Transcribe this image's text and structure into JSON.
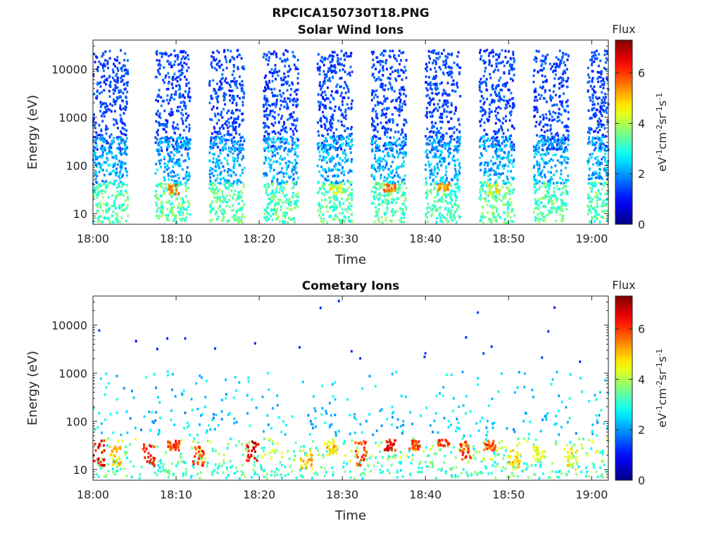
{
  "figure_title": "RPCICA150730T18.PNG",
  "chart_data": [
    {
      "type": "heatmap",
      "title": "Solar Wind Ions",
      "xlabel": "Time",
      "ylabel": "Energy (eV)",
      "x_ticks": [
        "18:00",
        "18:10",
        "18:20",
        "18:30",
        "18:40",
        "18:50",
        "19:00"
      ],
      "x_tick_minutes": [
        0,
        10,
        20,
        30,
        40,
        50,
        60
      ],
      "xlim_minutes": [
        0,
        62
      ],
      "y_scale": "log",
      "ylim": [
        6,
        40000
      ],
      "y_ticks": [
        "10",
        "100",
        "1000",
        "10000"
      ],
      "y_tick_values": [
        10,
        100,
        1000,
        10000
      ],
      "colorbar": {
        "label": "Flux",
        "unit": "eV-1cm-2sr-1s-1",
        "range": [
          0,
          7.3
        ],
        "ticks": [
          "0",
          "2",
          "4",
          "6"
        ],
        "tick_values": [
          0,
          2,
          4,
          6
        ],
        "colormap": "jet"
      },
      "sweep_bursts_start_minutes": [
        0,
        7.5,
        14,
        20.5,
        27,
        33.5,
        40,
        46.5,
        53,
        59.5
      ],
      "peak_bands": [
        {
          "start_minutes": 9,
          "energy_eV": [
            25,
            40
          ],
          "flux": 6.0
        },
        {
          "start_minutes": 28.5,
          "energy_eV": [
            25,
            40
          ],
          "flux": 5.0
        },
        {
          "start_minutes": 35,
          "energy_eV": [
            28,
            40
          ],
          "flux": 6.0
        },
        {
          "start_minutes": 41.5,
          "energy_eV": [
            30,
            42
          ],
          "flux": 6.0
        },
        {
          "start_minutes": 47.5,
          "energy_eV": [
            25,
            40
          ],
          "flux": 5.0
        }
      ],
      "grid": false
    },
    {
      "type": "heatmap",
      "title": "Cometary Ions",
      "xlabel": "Time",
      "ylabel": "Energy (eV)",
      "x_ticks": [
        "18:00",
        "18:10",
        "18:20",
        "18:30",
        "18:40",
        "18:50",
        "19:00"
      ],
      "x_tick_minutes": [
        0,
        10,
        20,
        30,
        40,
        50,
        60
      ],
      "xlim_minutes": [
        0,
        62
      ],
      "y_scale": "log",
      "ylim": [
        6,
        40000
      ],
      "y_ticks": [
        "10",
        "100",
        "1000",
        "10000"
      ],
      "y_tick_values": [
        10,
        100,
        1000,
        10000
      ],
      "colorbar": {
        "label": "Flux",
        "unit": "eV-1cm-2sr-1s-1",
        "range": [
          0,
          7.3
        ],
        "ticks": [
          "0",
          "2",
          "4",
          "6"
        ],
        "tick_values": [
          0,
          2,
          4,
          6
        ],
        "colormap": "jet"
      },
      "peak_bands": [
        {
          "start_minutes": 0,
          "energy_eV": [
            12,
            40
          ],
          "flux": 7.0
        },
        {
          "start_minutes": 2,
          "energy_eV": [
            12,
            30
          ],
          "flux": 5.5
        },
        {
          "start_minutes": 6,
          "energy_eV": [
            12,
            38
          ],
          "flux": 7.0
        },
        {
          "start_minutes": 9,
          "energy_eV": [
            25,
            40
          ],
          "flux": 6.5
        },
        {
          "start_minutes": 12,
          "energy_eV": [
            12,
            30
          ],
          "flux": 6.5
        },
        {
          "start_minutes": 18.5,
          "energy_eV": [
            15,
            40
          ],
          "flux": 7.0
        },
        {
          "start_minutes": 25,
          "energy_eV": [
            10,
            25
          ],
          "flux": 5.5
        },
        {
          "start_minutes": 28,
          "energy_eV": [
            20,
            40
          ],
          "flux": 5.5
        },
        {
          "start_minutes": 31.5,
          "energy_eV": [
            12,
            40
          ],
          "flux": 6.5
        },
        {
          "start_minutes": 35,
          "energy_eV": [
            25,
            42
          ],
          "flux": 7.0
        },
        {
          "start_minutes": 38,
          "energy_eV": [
            25,
            40
          ],
          "flux": 6.5
        },
        {
          "start_minutes": 41.5,
          "energy_eV": [
            30,
            42
          ],
          "flux": 6.5
        },
        {
          "start_minutes": 44,
          "energy_eV": [
            15,
            40
          ],
          "flux": 6.5
        },
        {
          "start_minutes": 47,
          "energy_eV": [
            25,
            40
          ],
          "flux": 6.5
        },
        {
          "start_minutes": 50,
          "energy_eV": [
            10,
            25
          ],
          "flux": 5.5
        },
        {
          "start_minutes": 53,
          "energy_eV": [
            15,
            30
          ],
          "flux": 5.0
        },
        {
          "start_minutes": 57,
          "energy_eV": [
            10,
            30
          ],
          "flux": 5.0
        }
      ],
      "grid": false
    }
  ]
}
